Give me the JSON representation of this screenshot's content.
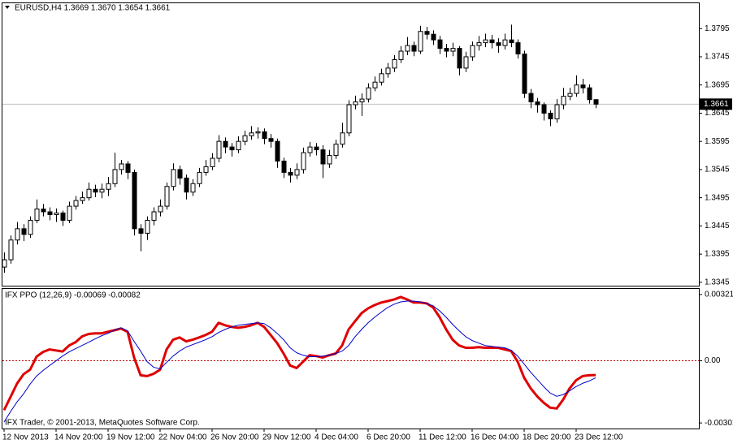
{
  "chart_data": [
    {
      "type": "candlestick",
      "title": "EURUSD,H4  1.3669 1.3670 1.3654 1.3661",
      "categories": [
        "12 Nov 2013",
        null,
        null,
        null,
        null,
        null,
        null,
        null,
        "14 Nov 20:00",
        null,
        null,
        null,
        null,
        null,
        null,
        null,
        "19 Nov 12:00",
        null,
        null,
        null,
        null,
        null,
        null,
        null,
        "22 Nov 04:00",
        null,
        null,
        null,
        null,
        null,
        null,
        null,
        "26 Nov 20:00",
        null,
        null,
        null,
        null,
        null,
        null,
        null,
        "29 Nov 12:00",
        null,
        null,
        null,
        null,
        null,
        null,
        null,
        "4 Dec 04:00",
        null,
        null,
        null,
        null,
        null,
        null,
        null,
        "6 Dec 20:00",
        null,
        null,
        null,
        null,
        null,
        null,
        null,
        "11 Dec 12:00",
        null,
        null,
        null,
        null,
        null,
        null,
        null,
        "16 Dec 04:00",
        null,
        null,
        null,
        null,
        null,
        null,
        null,
        "18 Dec 20:00",
        null,
        null,
        null,
        null,
        null,
        null,
        null,
        "23 Dec 12:00",
        null,
        null,
        null
      ],
      "ohlc": [
        [
          1.3372,
          1.3398,
          1.3362,
          1.3385
        ],
        [
          1.3385,
          1.3428,
          1.3378,
          1.342
        ],
        [
          1.342,
          1.3452,
          1.3412,
          1.344
        ],
        [
          1.344,
          1.3448,
          1.3418,
          1.343
        ],
        [
          1.343,
          1.3462,
          1.3424,
          1.3455
        ],
        [
          1.3455,
          1.3492,
          1.345,
          1.3475
        ],
        [
          1.3475,
          1.3484,
          1.3462,
          1.347
        ],
        [
          1.347,
          1.3478,
          1.3455,
          1.3465
        ],
        [
          1.3465,
          1.3476,
          1.3452,
          1.3468
        ],
        [
          1.3468,
          1.3472,
          1.3445,
          1.3455
        ],
        [
          1.3455,
          1.3488,
          1.345,
          1.348
        ],
        [
          1.348,
          1.3498,
          1.3474,
          1.349
        ],
        [
          1.349,
          1.3506,
          1.3484,
          1.3495
        ],
        [
          1.3495,
          1.3522,
          1.349,
          1.351
        ],
        [
          1.351,
          1.3518,
          1.3496,
          1.3505
        ],
        [
          1.3505,
          1.352,
          1.3494,
          1.351
        ],
        [
          1.351,
          1.3532,
          1.3498,
          1.352
        ],
        [
          1.352,
          1.3575,
          1.3514,
          1.3545
        ],
        [
          1.3545,
          1.3562,
          1.3536,
          1.3555
        ],
        [
          1.3555,
          1.356,
          1.3528,
          1.354
        ],
        [
          1.354,
          1.3545,
          1.3428,
          1.344
        ],
        [
          1.344,
          1.3448,
          1.34,
          1.3432
        ],
        [
          1.3432,
          1.3462,
          1.342,
          1.3455
        ],
        [
          1.3455,
          1.3478,
          1.3446,
          1.347
        ],
        [
          1.347,
          1.3492,
          1.3462,
          1.348
        ],
        [
          1.348,
          1.3522,
          1.3474,
          1.3515
        ],
        [
          1.3515,
          1.3556,
          1.3508,
          1.3545
        ],
        [
          1.3545,
          1.3552,
          1.3518,
          1.353
        ],
        [
          1.353,
          1.3536,
          1.3492,
          1.3505
        ],
        [
          1.3505,
          1.3528,
          1.3498,
          1.352
        ],
        [
          1.352,
          1.3548,
          1.3514,
          1.354
        ],
        [
          1.354,
          1.3562,
          1.3534,
          1.355
        ],
        [
          1.355,
          1.3574,
          1.3544,
          1.3565
        ],
        [
          1.3565,
          1.3606,
          1.3558,
          1.3595
        ],
        [
          1.3595,
          1.3602,
          1.3574,
          1.3585
        ],
        [
          1.3585,
          1.3592,
          1.3568,
          1.358
        ],
        [
          1.358,
          1.3604,
          1.3574,
          1.3595
        ],
        [
          1.3595,
          1.3614,
          1.3588,
          1.3605
        ],
        [
          1.3605,
          1.3622,
          1.3598,
          1.361
        ],
        [
          1.361,
          1.362,
          1.36,
          1.3612
        ],
        [
          1.3612,
          1.3618,
          1.359,
          1.36
        ],
        [
          1.36,
          1.3608,
          1.3584,
          1.3595
        ],
        [
          1.3595,
          1.36,
          1.3548,
          1.356
        ],
        [
          1.356,
          1.3566,
          1.353,
          1.354
        ],
        [
          1.354,
          1.3548,
          1.3522,
          1.3535
        ],
        [
          1.3535,
          1.3556,
          1.3528,
          1.3545
        ],
        [
          1.3545,
          1.3584,
          1.3538,
          1.3575
        ],
        [
          1.3575,
          1.3594,
          1.3568,
          1.3585
        ],
        [
          1.3585,
          1.3592,
          1.357,
          1.358
        ],
        [
          1.358,
          1.3588,
          1.353,
          1.3555
        ],
        [
          1.3555,
          1.358,
          1.3548,
          1.357
        ],
        [
          1.357,
          1.3598,
          1.3564,
          1.359
        ],
        [
          1.359,
          1.3628,
          1.3584,
          1.361
        ],
        [
          1.361,
          1.3668,
          1.3604,
          1.366
        ],
        [
          1.366,
          1.3676,
          1.3652,
          1.3665
        ],
        [
          1.3665,
          1.368,
          1.364,
          1.367
        ],
        [
          1.367,
          1.3698,
          1.3664,
          1.369
        ],
        [
          1.369,
          1.371,
          1.3684,
          1.37
        ],
        [
          1.37,
          1.3724,
          1.3694,
          1.3715
        ],
        [
          1.3715,
          1.3734,
          1.3708,
          1.3725
        ],
        [
          1.3725,
          1.3748,
          1.3718,
          1.374
        ],
        [
          1.374,
          1.3764,
          1.3734,
          1.3755
        ],
        [
          1.3755,
          1.378,
          1.3748,
          1.3765
        ],
        [
          1.3765,
          1.3772,
          1.3746,
          1.3755
        ],
        [
          1.3755,
          1.38,
          1.375,
          1.379
        ],
        [
          1.379,
          1.3798,
          1.3776,
          1.3785
        ],
        [
          1.3785,
          1.3792,
          1.3766,
          1.3775
        ],
        [
          1.3775,
          1.3782,
          1.375,
          1.376
        ],
        [
          1.376,
          1.3768,
          1.3744,
          1.3755
        ],
        [
          1.3755,
          1.377,
          1.3746,
          1.376
        ],
        [
          1.376,
          1.3764,
          1.3712,
          1.3725
        ],
        [
          1.3725,
          1.3754,
          1.3718,
          1.3745
        ],
        [
          1.3745,
          1.3772,
          1.3738,
          1.3765
        ],
        [
          1.3765,
          1.3782,
          1.3756,
          1.377
        ],
        [
          1.377,
          1.3786,
          1.3762,
          1.3775
        ],
        [
          1.3775,
          1.3784,
          1.376,
          1.377
        ],
        [
          1.377,
          1.3778,
          1.3752,
          1.3765
        ],
        [
          1.3765,
          1.3786,
          1.3758,
          1.3775
        ],
        [
          1.3775,
          1.3802,
          1.3762,
          1.377
        ],
        [
          1.377,
          1.3776,
          1.3742,
          1.375
        ],
        [
          1.375,
          1.3756,
          1.3672,
          1.368
        ],
        [
          1.368,
          1.3688,
          1.3654,
          1.3665
        ],
        [
          1.3665,
          1.3672,
          1.3646,
          1.366
        ],
        [
          1.366,
          1.3664,
          1.3632,
          1.3645
        ],
        [
          1.3645,
          1.365,
          1.3622,
          1.3635
        ],
        [
          1.3635,
          1.367,
          1.3628,
          1.366
        ],
        [
          1.366,
          1.369,
          1.3652,
          1.3675
        ],
        [
          1.3675,
          1.369,
          1.3668,
          1.368
        ],
        [
          1.368,
          1.3712,
          1.3674,
          1.3695
        ],
        [
          1.3695,
          1.3706,
          1.368,
          1.369
        ],
        [
          1.369,
          1.3696,
          1.3662,
          1.3669
        ],
        [
          1.3669,
          1.367,
          1.3654,
          1.3661
        ]
      ],
      "color": "#000000",
      "ylim": [
        1.3339,
        1.384
      ],
      "yticks": [
        1.3795,
        1.3745,
        1.3695,
        1.3645,
        1.3595,
        1.3545,
        1.3495,
        1.3445,
        1.3395,
        1.3345
      ],
      "last_price": 1.3661,
      "last_price_color": "#c0c0c0"
    },
    {
      "type": "line",
      "title": "IFX PPO (12,26,9) -0.00069 -0.00082",
      "footnote": "IFX Trader, © 2001-2013, MetaQuotes Software Corp.",
      "series": [
        {
          "color": "#e00000",
          "width": 3,
          "values": [
            -0.00239,
            -0.00175,
            -0.0011,
            -0.00065,
            -0.00043,
            0.0002,
            0.00043,
            0.00055,
            0.0005,
            0.00045,
            0.00074,
            0.0009,
            0.00118,
            0.0013,
            0.00133,
            0.00133,
            0.00141,
            0.00148,
            0.00156,
            0.0014,
            0.00016,
            -0.0007,
            -0.00074,
            -0.00063,
            -0.00043,
            0.00055,
            0.00102,
            0.00113,
            0.00094,
            0.00102,
            0.00113,
            0.00125,
            0.00141,
            0.00184,
            0.00172,
            0.00164,
            0.0016,
            0.00164,
            0.00172,
            0.00184,
            0.00164,
            0.00125,
            0.00086,
            0.00035,
            -0.00023,
            -0.00035,
            -4e-05,
            0.00027,
            0.00023,
            0.00016,
            0.00027,
            0.00035,
            0.00074,
            0.00152,
            0.00192,
            0.00231,
            0.00254,
            0.0027,
            0.00282,
            0.00289,
            0.00297,
            0.00309,
            0.00297,
            0.00282,
            0.00282,
            0.00278,
            0.00258,
            0.00211,
            0.00152,
            0.00102,
            0.00074,
            0.00063,
            0.00063,
            0.00066,
            0.00063,
            0.00063,
            0.00063,
            0.00055,
            0.00047,
            -4e-05,
            -0.00082,
            -0.00133,
            -0.00172,
            -0.00203,
            -0.00227,
            -0.00231,
            -0.00188,
            -0.00133,
            -0.00094,
            -0.00074,
            -0.0007,
            -0.00069
          ]
        },
        {
          "color": "#0000cc",
          "width": 1,
          "values": [
            -0.00297,
            -0.00246,
            -0.00199,
            -0.0016,
            -0.00113,
            -0.00074,
            -0.00047,
            -0.00023,
            0,
            0.00023,
            0.00043,
            0.00059,
            0.00074,
            0.0009,
            0.00106,
            0.00121,
            0.00133,
            0.00149,
            0.0016,
            0.00145,
            0.00094,
            0.00047,
            -4e-05,
            -0.00031,
            -0.00039,
            -8e-05,
            0.00023,
            0.00047,
            0.00066,
            0.00078,
            0.0009,
            0.00102,
            0.00117,
            0.00137,
            0.00152,
            0.00164,
            0.00172,
            0.00176,
            0.0018,
            0.00184,
            0.0018,
            0.0016,
            0.00133,
            0.00102,
            0.00063,
            0.00039,
            0.00027,
            0.0002,
            0.0002,
            0.00023,
            0.00027,
            0.00035,
            0.00047,
            0.00074,
            0.00117,
            0.00152,
            0.00184,
            0.00211,
            0.00235,
            0.00258,
            0.00274,
            0.00285,
            0.00289,
            0.00289,
            0.00285,
            0.00278,
            0.00266,
            0.00242,
            0.00211,
            0.00176,
            0.00145,
            0.00117,
            0.00098,
            0.00086,
            0.00074,
            0.0007,
            0.00066,
            0.00063,
            0.00051,
            0.00023,
            -0.00016,
            -0.00055,
            -0.0009,
            -0.00125,
            -0.00156,
            -0.00172,
            -0.00164,
            -0.00145,
            -0.00125,
            -0.00109,
            -0.00098,
            -0.00082
          ]
        }
      ],
      "ylim": [
        -0.00328,
        0.00348
      ],
      "yticks": [
        0.00321,
        {
          "value": 0,
          "label": "0.00"
        },
        -0.00301
      ],
      "level_color": "#c00000"
    }
  ]
}
